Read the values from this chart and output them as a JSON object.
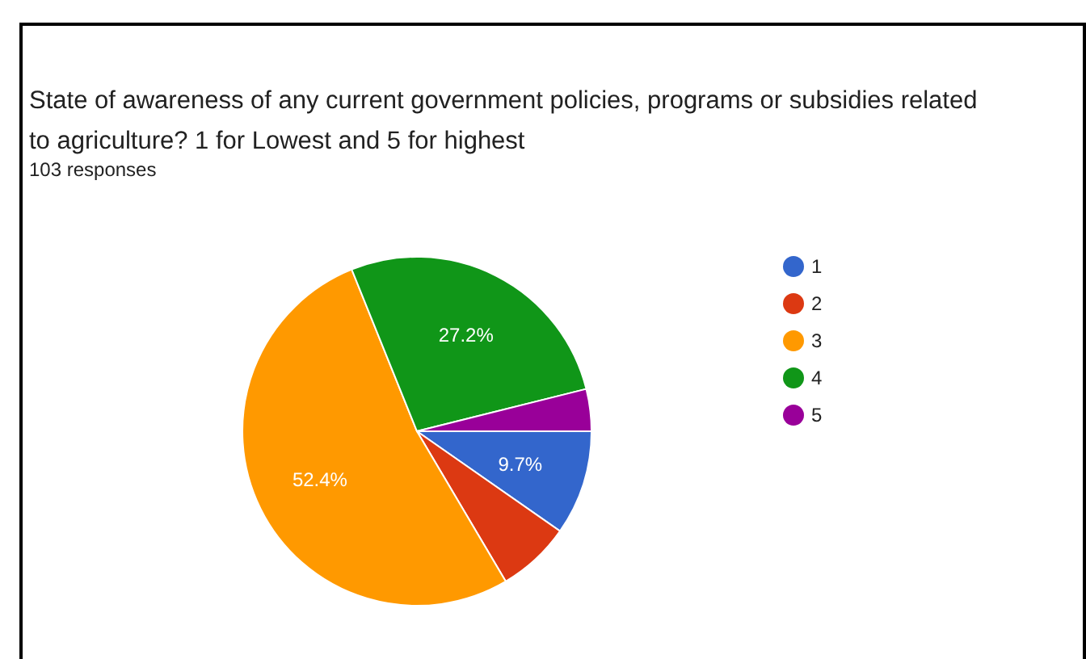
{
  "chart_data": {
    "type": "pie",
    "title": "State of awareness of any current government policies, programs or subsidies related to agriculture?  1 for Lowest and 5 for highest",
    "subtitle": "103 responses",
    "categories": [
      "1",
      "2",
      "3",
      "4",
      "5"
    ],
    "values": [
      9.7,
      6.8,
      52.4,
      27.2,
      3.9
    ],
    "value_labels": [
      "9.7%",
      null,
      "52.4%",
      "27.2%",
      null
    ],
    "colors": [
      "#3366cc",
      "#dc3912",
      "#ff9900",
      "#109618",
      "#990099"
    ],
    "legend": "right"
  }
}
